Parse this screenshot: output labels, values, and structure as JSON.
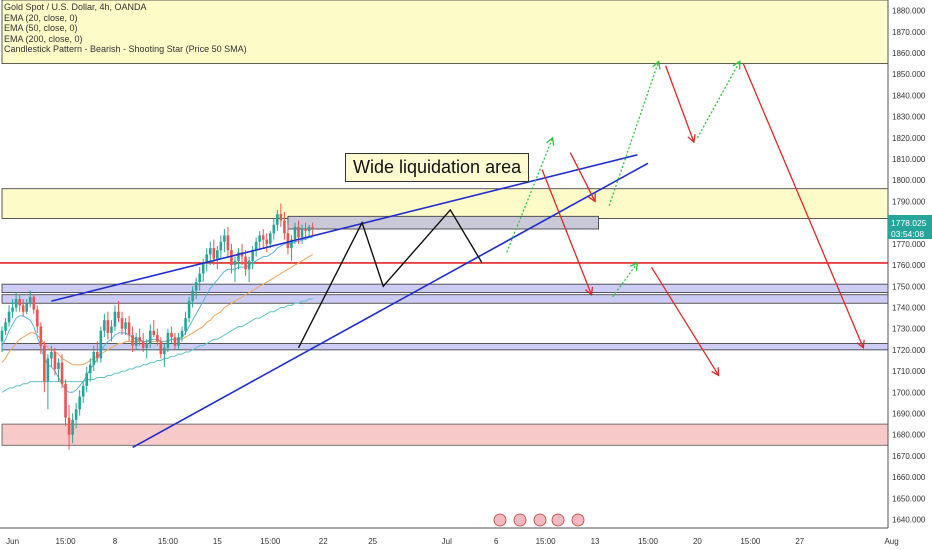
{
  "window": {
    "legend": [
      "Gold Spot / U.S. Dollar, 4h, OANDA",
      "EMA (20, close, 0)",
      "EMA (50, close, 0)",
      "EMA (200, close, 0)",
      "Candlestick Pattern - Bearish - Shooting Star (Price 50 SMA)"
    ],
    "callout": "Wide liquidation area"
  },
  "chart_data": {
    "type": "candlestick",
    "title": "Gold Spot / U.S. Dollar, 4h, OANDA",
    "ylim": [
      1636,
      1885
    ],
    "y_ticks": [
      1640,
      1650,
      1660,
      1670,
      1680,
      1690,
      1700,
      1710,
      1720,
      1730,
      1740,
      1750,
      1760,
      1770,
      1780,
      1790,
      1800,
      1810,
      1820,
      1830,
      1840,
      1850,
      1860,
      1870,
      1880
    ],
    "x_ticks": [
      "Jun",
      "15:00",
      "8",
      "15:00",
      "15",
      "15:00",
      "22",
      "25",
      "Jul",
      "6",
      "15:00",
      "13",
      "15:00",
      "20",
      "15:00",
      "27",
      "Aug"
    ],
    "x_tick_index": [
      3,
      18,
      32,
      47,
      61,
      76,
      91,
      105,
      126,
      140,
      154,
      168,
      183,
      197,
      212,
      226,
      252
    ],
    "price_label": "1778.025",
    "countdown_label": "03:54:08",
    "colors": {
      "up": "#26a69a",
      "down": "#ef5350",
      "ema20": "#5ab4d8",
      "ema50": "#f2a35e",
      "ema200": "#5fc2c8",
      "trend": "#1f2ccc",
      "target_up": "#2cc33e",
      "target_down": "#e22727"
    },
    "candles": [
      [
        1724,
        1731,
        1719,
        1729
      ],
      [
        1729,
        1735,
        1727,
        1733
      ],
      [
        1733,
        1741,
        1731,
        1738
      ],
      [
        1738,
        1744,
        1735,
        1740
      ],
      [
        1740,
        1747,
        1738,
        1744
      ],
      [
        1744,
        1746,
        1738,
        1741
      ],
      [
        1741,
        1744,
        1736,
        1738
      ],
      [
        1738,
        1744,
        1737,
        1742
      ],
      [
        1742,
        1748,
        1740,
        1745
      ],
      [
        1745,
        1746,
        1737,
        1739
      ],
      [
        1739,
        1741,
        1728,
        1731
      ],
      [
        1731,
        1733,
        1718,
        1722
      ],
      [
        1722,
        1724,
        1700,
        1705
      ],
      [
        1705,
        1718,
        1692,
        1716
      ],
      [
        1716,
        1722,
        1712,
        1719
      ],
      [
        1719,
        1721,
        1708,
        1711
      ],
      [
        1711,
        1716,
        1705,
        1714
      ],
      [
        1714,
        1718,
        1702,
        1704
      ],
      [
        1704,
        1706,
        1684,
        1688
      ],
      [
        1688,
        1694,
        1673,
        1680
      ],
      [
        1680,
        1690,
        1676,
        1687
      ],
      [
        1687,
        1695,
        1683,
        1692
      ],
      [
        1692,
        1701,
        1689,
        1698
      ],
      [
        1698,
        1705,
        1695,
        1703
      ],
      [
        1703,
        1712,
        1700,
        1709
      ],
      [
        1709,
        1716,
        1705,
        1713
      ],
      [
        1713,
        1722,
        1710,
        1719
      ],
      [
        1719,
        1724,
        1714,
        1716
      ],
      [
        1716,
        1731,
        1714,
        1729
      ],
      [
        1729,
        1737,
        1726,
        1734
      ],
      [
        1734,
        1738,
        1725,
        1728
      ],
      [
        1728,
        1734,
        1724,
        1731
      ],
      [
        1731,
        1741,
        1729,
        1738
      ],
      [
        1738,
        1743,
        1733,
        1735
      ],
      [
        1735,
        1738,
        1727,
        1730
      ],
      [
        1730,
        1735,
        1727,
        1733
      ],
      [
        1733,
        1736,
        1724,
        1727
      ],
      [
        1727,
        1731,
        1719,
        1722
      ],
      [
        1722,
        1728,
        1720,
        1726
      ],
      [
        1726,
        1730,
        1722,
        1724
      ],
      [
        1724,
        1728,
        1719,
        1721
      ],
      [
        1721,
        1725,
        1716,
        1723
      ],
      [
        1723,
        1732,
        1721,
        1729
      ],
      [
        1729,
        1734,
        1726,
        1727
      ],
      [
        1727,
        1730,
        1722,
        1724
      ],
      [
        1724,
        1726,
        1716,
        1718
      ],
      [
        1718,
        1723,
        1712,
        1721
      ],
      [
        1721,
        1730,
        1719,
        1728
      ],
      [
        1728,
        1731,
        1723,
        1726
      ],
      [
        1726,
        1728,
        1720,
        1722
      ],
      [
        1722,
        1728,
        1720,
        1726
      ],
      [
        1726,
        1731,
        1724,
        1729
      ],
      [
        1729,
        1738,
        1727,
        1735
      ],
      [
        1735,
        1745,
        1733,
        1743
      ],
      [
        1743,
        1750,
        1740,
        1748
      ],
      [
        1748,
        1754,
        1744,
        1752
      ],
      [
        1752,
        1759,
        1748,
        1756
      ],
      [
        1756,
        1763,
        1752,
        1761
      ],
      [
        1761,
        1768,
        1757,
        1765
      ],
      [
        1765,
        1771,
        1760,
        1768
      ],
      [
        1768,
        1772,
        1760,
        1763
      ],
      [
        1763,
        1769,
        1758,
        1767
      ],
      [
        1767,
        1774,
        1763,
        1771
      ],
      [
        1771,
        1777,
        1766,
        1774
      ],
      [
        1774,
        1778,
        1764,
        1767
      ],
      [
        1767,
        1770,
        1756,
        1760
      ],
      [
        1760,
        1764,
        1752,
        1762
      ],
      [
        1762,
        1768,
        1758,
        1766
      ],
      [
        1766,
        1770,
        1760,
        1764
      ],
      [
        1764,
        1767,
        1755,
        1758
      ],
      [
        1758,
        1764,
        1752,
        1762
      ],
      [
        1762,
        1769,
        1758,
        1767
      ],
      [
        1767,
        1773,
        1764,
        1771
      ],
      [
        1771,
        1776,
        1767,
        1774
      ],
      [
        1774,
        1777,
        1768,
        1772
      ],
      [
        1772,
        1775,
        1766,
        1770
      ],
      [
        1770,
        1776,
        1768,
        1775
      ],
      [
        1775,
        1782,
        1772,
        1779
      ],
      [
        1779,
        1786,
        1776,
        1784
      ],
      [
        1784,
        1789,
        1778,
        1781
      ],
      [
        1781,
        1785,
        1772,
        1775
      ],
      [
        1775,
        1779,
        1765,
        1768
      ],
      [
        1768,
        1774,
        1762,
        1772
      ],
      [
        1772,
        1780,
        1770,
        1778
      ],
      [
        1778,
        1781,
        1770,
        1773
      ],
      [
        1773,
        1779,
        1770,
        1777
      ],
      [
        1777,
        1780,
        1772,
        1776
      ],
      [
        1776,
        1779,
        1773,
        1778
      ],
      [
        1778,
        1780,
        1774,
        1777
      ]
    ],
    "ema20": [
      1722,
      1725,
      1729,
      1732,
      1735,
      1736,
      1736,
      1735,
      1734,
      1731,
      1726,
      1721,
      1716,
      1713,
      1712,
      1710,
      1707,
      1704,
      1701,
      1700,
      1700,
      1701,
      1703,
      1705,
      1708,
      1711,
      1713,
      1716,
      1719,
      1722,
      1724,
      1725,
      1727,
      1728,
      1728,
      1728,
      1727,
      1726,
      1725,
      1725,
      1724,
      1724,
      1725,
      1725,
      1725,
      1724,
      1724,
      1724,
      1725,
      1725,
      1725,
      1726,
      1728,
      1731,
      1734,
      1737,
      1740,
      1743,
      1746,
      1749,
      1751,
      1753,
      1755,
      1757,
      1758,
      1758,
      1758,
      1759,
      1759,
      1759,
      1760,
      1761,
      1762,
      1763,
      1764,
      1764,
      1765,
      1766,
      1768,
      1769,
      1770,
      1770,
      1770,
      1771,
      1771,
      1772,
      1772,
      1773,
      1773
    ],
    "ema50": [
      1714,
      1716,
      1719,
      1721,
      1723,
      1725,
      1726,
      1727,
      1728,
      1728,
      1727,
      1725,
      1723,
      1721,
      1720,
      1719,
      1718,
      1716,
      1715,
      1714,
      1713,
      1713,
      1713,
      1713,
      1714,
      1715,
      1716,
      1717,
      1718,
      1719,
      1720,
      1721,
      1722,
      1723,
      1723,
      1724,
      1724,
      1724,
      1724,
      1724,
      1724,
      1724,
      1724,
      1724,
      1724,
      1724,
      1724,
      1724,
      1725,
      1725,
      1725,
      1725,
      1726,
      1727,
      1728,
      1729,
      1730,
      1731,
      1733,
      1734,
      1736,
      1737,
      1738,
      1740,
      1741,
      1742,
      1743,
      1744,
      1745,
      1746,
      1747,
      1748,
      1749,
      1750,
      1751,
      1752,
      1753,
      1754,
      1755,
      1756,
      1757,
      1758,
      1759,
      1760,
      1761,
      1762,
      1763,
      1764,
      1765
    ],
    "ema200": [
      1700,
      1701,
      1702,
      1702,
      1703,
      1703,
      1704,
      1704,
      1705,
      1705,
      1705,
      1705,
      1705,
      1705,
      1705,
      1705,
      1705,
      1705,
      1705,
      1705,
      1705,
      1705,
      1705,
      1705,
      1706,
      1706,
      1706,
      1707,
      1707,
      1707,
      1708,
      1708,
      1709,
      1709,
      1710,
      1710,
      1711,
      1711,
      1712,
      1712,
      1713,
      1713,
      1714,
      1714,
      1715,
      1715,
      1716,
      1716,
      1717,
      1717,
      1718,
      1718,
      1719,
      1719,
      1720,
      1721,
      1722,
      1722,
      1723,
      1724,
      1725,
      1725,
      1726,
      1727,
      1728,
      1729,
      1730,
      1731,
      1731,
      1732,
      1733,
      1734,
      1735,
      1735,
      1736,
      1737,
      1738,
      1738,
      1739,
      1740,
      1740,
      1741,
      1741,
      1742,
      1742,
      1743,
      1743,
      1744,
      1744
    ],
    "zones": [
      {
        "from": 1855,
        "to": 1885,
        "fill": "#fdfbc8",
        "stroke": "#333333",
        "x_from": 0,
        "x_to": 256
      },
      {
        "from": 1782,
        "to": 1796,
        "fill": "#fdfbc8",
        "stroke": "#333333",
        "x_from": 0,
        "x_to": 256
      },
      {
        "from": 1777,
        "to": 1783,
        "fill": "#c9c9d8",
        "stroke": "#333333",
        "x_from": 81,
        "x_to": 169
      },
      {
        "from": 1747,
        "to": 1751,
        "fill": "#ccccf5",
        "stroke": "#333333",
        "x_from": 0,
        "x_to": 253
      },
      {
        "from": 1742,
        "to": 1746,
        "fill": "#ccccf5",
        "stroke": "#333333",
        "x_from": 0,
        "x_to": 253
      },
      {
        "from": 1720,
        "to": 1723,
        "fill": "#ccccf5",
        "stroke": "#333333",
        "x_from": 0,
        "x_to": 252
      },
      {
        "from": 1675,
        "to": 1685,
        "fill": "#f7c9c9",
        "stroke": "#555555",
        "x_from": 0,
        "x_to": 256
      }
    ],
    "hlines": [
      {
        "y": 1761,
        "color": "#e22727"
      }
    ],
    "trendlines": [
      {
        "pts": [
          [
            14,
            1743
          ],
          [
            180,
            1812
          ]
        ]
      },
      {
        "pts": [
          [
            37,
            1674
          ],
          [
            183,
            1808
          ]
        ]
      }
    ],
    "zigzag": [
      [
        84,
        1721
      ],
      [
        102,
        1780
      ],
      [
        108,
        1750
      ],
      [
        127,
        1786
      ],
      [
        136,
        1761
      ]
    ],
    "target_paths": [
      {
        "color": "#2cc33e",
        "pts": [
          [
            143,
            1766
          ],
          [
            156,
            1820
          ]
        ]
      },
      {
        "color": "#2cc33e",
        "pts": [
          [
            172,
            1788
          ],
          [
            186,
            1856
          ]
        ]
      },
      {
        "color": "#2cc33e",
        "pts": [
          [
            197,
            1820
          ],
          [
            209,
            1856
          ]
        ]
      },
      {
        "color": "#2cc33e",
        "pts": [
          [
            173,
            1745
          ],
          [
            180,
            1761
          ]
        ]
      },
      {
        "color": "#e22727",
        "pts": [
          [
            153,
            1805
          ],
          [
            167,
            1746
          ]
        ]
      },
      {
        "color": "#e22727",
        "pts": [
          [
            161,
            1813
          ],
          [
            168,
            1790
          ]
        ]
      },
      {
        "color": "#e22727",
        "pts": [
          [
            188,
            1854
          ],
          [
            196,
            1818
          ]
        ]
      },
      {
        "color": "#e22727",
        "pts": [
          [
            210,
            1855
          ],
          [
            244,
            1721
          ]
        ]
      },
      {
        "color": "#e22727",
        "pts": [
          [
            184,
            1759
          ],
          [
            203,
            1708
          ]
        ]
      }
    ]
  }
}
